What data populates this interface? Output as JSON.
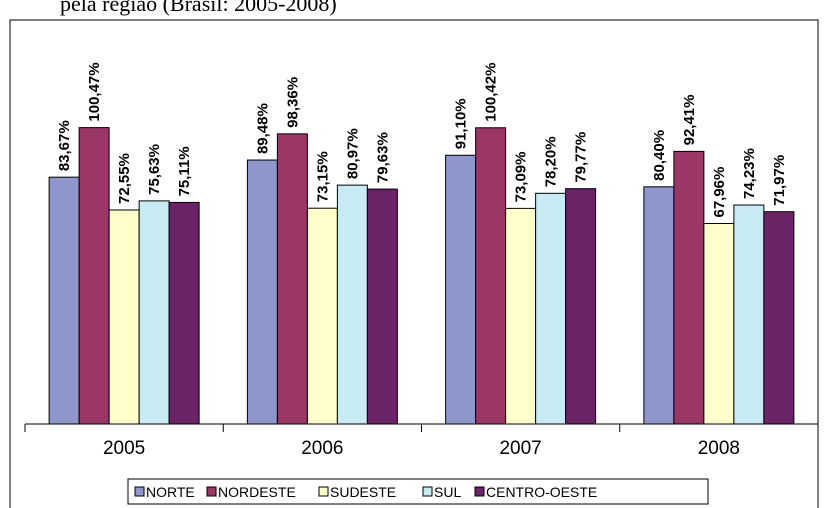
{
  "caption": "pela região (Brasil: 2005-2008)",
  "chart_data": {
    "type": "bar",
    "title": "",
    "xlabel": "",
    "ylabel": "",
    "categories": [
      "2005",
      "2006",
      "2007",
      "2008"
    ],
    "ylim": [
      0,
      120
    ],
    "grid": false,
    "legend_position": "bottom",
    "series": [
      {
        "name": "NORTE",
        "color": "#8E96CC",
        "values": [
          83.67,
          89.48,
          91.1,
          80.4
        ],
        "labels": [
          "83,67%",
          "89,48%",
          "91,10%",
          "80,40%"
        ]
      },
      {
        "name": "NORDESTE",
        "color": "#9A3766",
        "values": [
          100.47,
          98.36,
          100.42,
          92.41
        ],
        "labels": [
          "100,47%",
          "98,36%",
          "100,42%",
          "92,41%"
        ]
      },
      {
        "name": "SUDESTE",
        "color": "#FFFFCC",
        "values": [
          72.55,
          73.15,
          73.09,
          67.96
        ],
        "labels": [
          "72,55%",
          "73,15%",
          "73,09%",
          "67,96%"
        ]
      },
      {
        "name": "SUL",
        "color": "#C8EAF2",
        "values": [
          75.63,
          80.97,
          78.2,
          74.23
        ],
        "labels": [
          "75,63%",
          "80,97%",
          "78,20%",
          "74,23%"
        ]
      },
      {
        "name": "CENTRO-OESTE",
        "color": "#6B2368",
        "values": [
          75.11,
          79.63,
          79.77,
          71.97
        ],
        "labels": [
          "75,11%",
          "79,63%",
          "79,77%",
          "71,97%"
        ]
      }
    ]
  }
}
